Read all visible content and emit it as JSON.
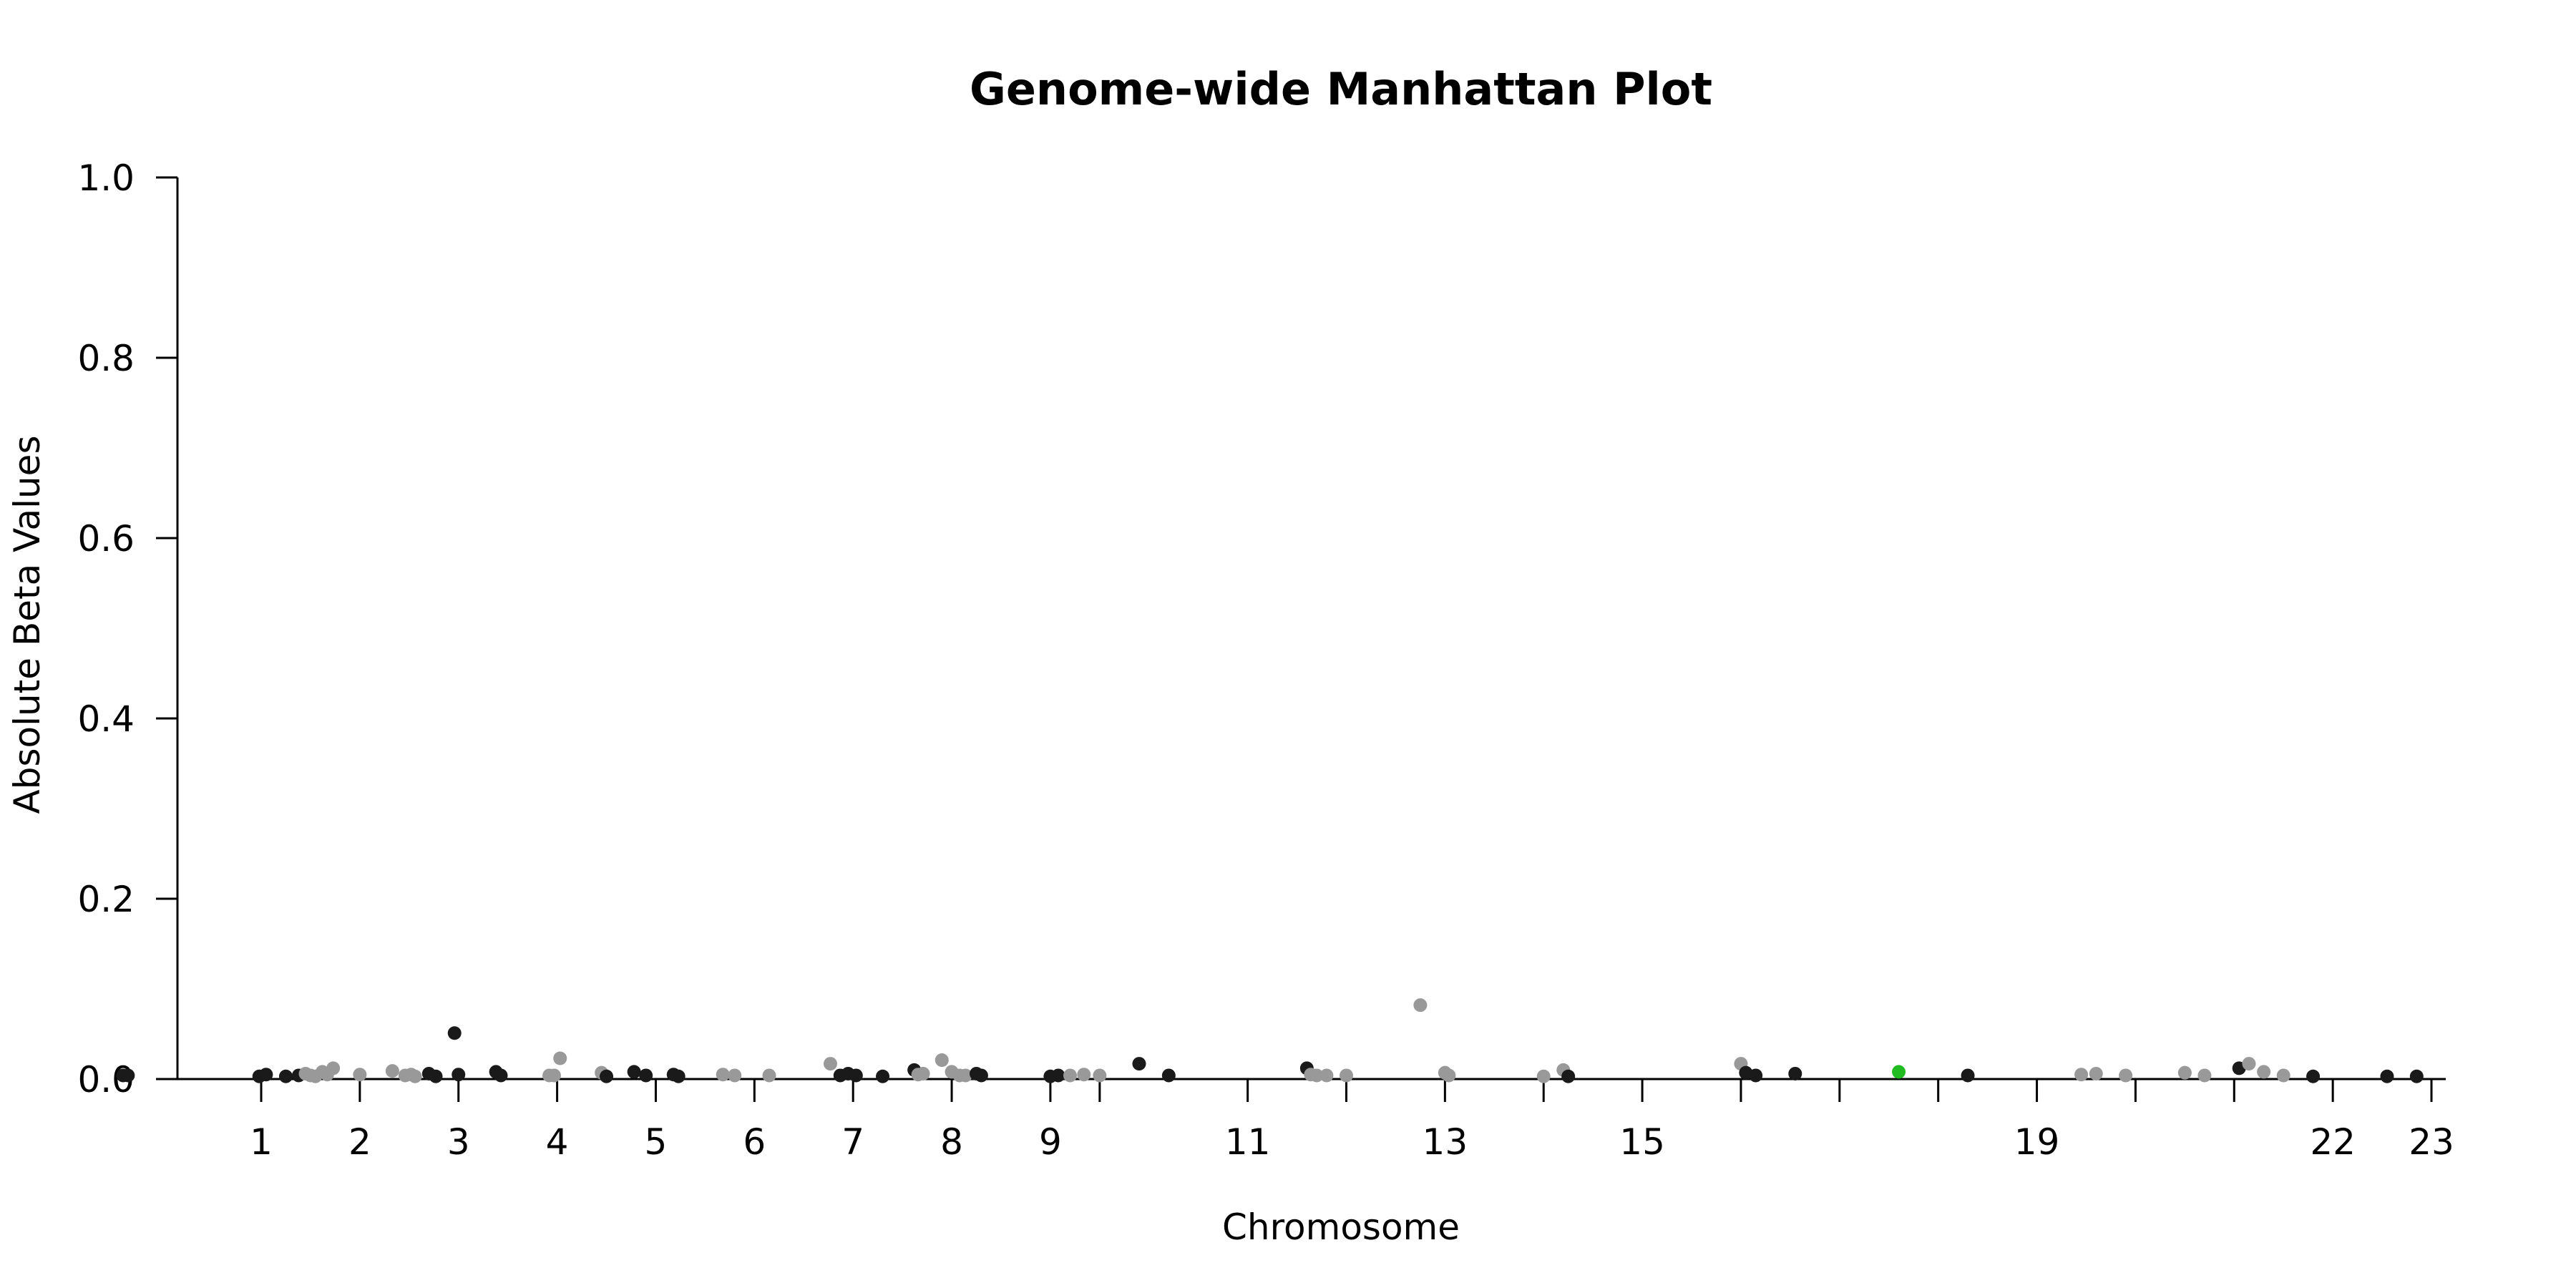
{
  "chart_data": {
    "type": "scatter",
    "title": "Genome-wide Manhattan Plot",
    "xlabel": "Chromosome",
    "ylabel": "Absolute Beta Values",
    "ylim": [
      0.0,
      1.0
    ],
    "y_ticks": [
      "0.0",
      "0.2",
      "0.4",
      "0.6",
      "0.8",
      "1.0"
    ],
    "y_tick_values": [
      0.0,
      0.2,
      0.4,
      0.6,
      0.8,
      1.0
    ],
    "x_ticks": [
      {
        "label": "1",
        "pos": 1.0
      },
      {
        "label": "2",
        "pos": 2.0
      },
      {
        "label": "3",
        "pos": 3.0
      },
      {
        "label": "4",
        "pos": 4.0
      },
      {
        "label": "5",
        "pos": 5.0
      },
      {
        "label": "6",
        "pos": 6.0
      },
      {
        "label": "7",
        "pos": 7.0
      },
      {
        "label": "8",
        "pos": 8.0
      },
      {
        "label": "9",
        "pos": 9.0
      },
      {
        "label": "",
        "pos": 9.5
      },
      {
        "label": "11",
        "pos": 11.0
      },
      {
        "label": "",
        "pos": 12.0
      },
      {
        "label": "13",
        "pos": 13.0
      },
      {
        "label": "",
        "pos": 14.0
      },
      {
        "label": "15",
        "pos": 15.0
      },
      {
        "label": "",
        "pos": 16.0
      },
      {
        "label": "",
        "pos": 17.0
      },
      {
        "label": "",
        "pos": 18.0
      },
      {
        "label": "19",
        "pos": 19.0
      },
      {
        "label": "",
        "pos": 20.0
      },
      {
        "label": "",
        "pos": 21.0
      },
      {
        "label": "22",
        "pos": 22.0
      },
      {
        "label": "23",
        "pos": 23.0
      }
    ],
    "xlim": [
      -0.5,
      23.1
    ],
    "grid": false,
    "colors": {
      "dark": "#1a1a1a",
      "light": "#999999",
      "highlight": "#22bb22"
    },
    "points": [
      {
        "x": -0.4,
        "y": 0.004,
        "c": "dark"
      },
      {
        "x": -0.35,
        "y": 0.004,
        "c": "dark"
      },
      {
        "x": 0.98,
        "y": 0.003,
        "c": "dark"
      },
      {
        "x": 1.05,
        "y": 0.005,
        "c": "dark"
      },
      {
        "x": 1.25,
        "y": 0.003,
        "c": "dark"
      },
      {
        "x": 1.38,
        "y": 0.004,
        "c": "dark"
      },
      {
        "x": 1.45,
        "y": 0.006,
        "c": "light"
      },
      {
        "x": 1.5,
        "y": 0.004,
        "c": "light"
      },
      {
        "x": 1.55,
        "y": 0.003,
        "c": "light"
      },
      {
        "x": 1.62,
        "y": 0.008,
        "c": "light"
      },
      {
        "x": 1.67,
        "y": 0.005,
        "c": "light"
      },
      {
        "x": 1.73,
        "y": 0.012,
        "c": "light"
      },
      {
        "x": 2.0,
        "y": 0.005,
        "c": "light"
      },
      {
        "x": 2.33,
        "y": 0.009,
        "c": "light"
      },
      {
        "x": 2.46,
        "y": 0.004,
        "c": "light"
      },
      {
        "x": 2.52,
        "y": 0.005,
        "c": "light"
      },
      {
        "x": 2.56,
        "y": 0.003,
        "c": "light"
      },
      {
        "x": 2.7,
        "y": 0.006,
        "c": "dark"
      },
      {
        "x": 2.77,
        "y": 0.003,
        "c": "dark"
      },
      {
        "x": 2.96,
        "y": 0.051,
        "c": "dark"
      },
      {
        "x": 3.0,
        "y": 0.005,
        "c": "dark"
      },
      {
        "x": 3.38,
        "y": 0.008,
        "c": "dark"
      },
      {
        "x": 3.43,
        "y": 0.004,
        "c": "dark"
      },
      {
        "x": 3.92,
        "y": 0.004,
        "c": "light"
      },
      {
        "x": 3.97,
        "y": 0.004,
        "c": "light"
      },
      {
        "x": 4.03,
        "y": 0.023,
        "c": "light"
      },
      {
        "x": 4.45,
        "y": 0.007,
        "c": "light"
      },
      {
        "x": 4.5,
        "y": 0.003,
        "c": "dark"
      },
      {
        "x": 4.78,
        "y": 0.008,
        "c": "dark"
      },
      {
        "x": 4.9,
        "y": 0.004,
        "c": "dark"
      },
      {
        "x": 5.18,
        "y": 0.005,
        "c": "dark"
      },
      {
        "x": 5.23,
        "y": 0.003,
        "c": "dark"
      },
      {
        "x": 5.68,
        "y": 0.005,
        "c": "light"
      },
      {
        "x": 5.8,
        "y": 0.004,
        "c": "light"
      },
      {
        "x": 6.15,
        "y": 0.004,
        "c": "light"
      },
      {
        "x": 6.77,
        "y": 0.017,
        "c": "light"
      },
      {
        "x": 6.87,
        "y": 0.004,
        "c": "dark"
      },
      {
        "x": 6.95,
        "y": 0.006,
        "c": "dark"
      },
      {
        "x": 7.03,
        "y": 0.004,
        "c": "dark"
      },
      {
        "x": 7.3,
        "y": 0.003,
        "c": "dark"
      },
      {
        "x": 7.62,
        "y": 0.01,
        "c": "dark"
      },
      {
        "x": 7.66,
        "y": 0.005,
        "c": "light"
      },
      {
        "x": 7.71,
        "y": 0.006,
        "c": "light"
      },
      {
        "x": 7.9,
        "y": 0.021,
        "c": "light"
      },
      {
        "x": 8.0,
        "y": 0.008,
        "c": "light"
      },
      {
        "x": 8.08,
        "y": 0.004,
        "c": "light"
      },
      {
        "x": 8.14,
        "y": 0.004,
        "c": "light"
      },
      {
        "x": 8.25,
        "y": 0.006,
        "c": "dark"
      },
      {
        "x": 8.3,
        "y": 0.004,
        "c": "dark"
      },
      {
        "x": 9.0,
        "y": 0.003,
        "c": "dark"
      },
      {
        "x": 9.08,
        "y": 0.004,
        "c": "dark"
      },
      {
        "x": 9.2,
        "y": 0.004,
        "c": "light"
      },
      {
        "x": 9.34,
        "y": 0.005,
        "c": "light"
      },
      {
        "x": 9.5,
        "y": 0.004,
        "c": "light"
      },
      {
        "x": 9.9,
        "y": 0.017,
        "c": "dark"
      },
      {
        "x": 10.2,
        "y": 0.004,
        "c": "dark"
      },
      {
        "x": 11.6,
        "y": 0.012,
        "c": "dark"
      },
      {
        "x": 11.64,
        "y": 0.005,
        "c": "light"
      },
      {
        "x": 11.7,
        "y": 0.004,
        "c": "light"
      },
      {
        "x": 11.8,
        "y": 0.004,
        "c": "light"
      },
      {
        "x": 12.0,
        "y": 0.004,
        "c": "light"
      },
      {
        "x": 12.75,
        "y": 0.082,
        "c": "light"
      },
      {
        "x": 13.0,
        "y": 0.007,
        "c": "light"
      },
      {
        "x": 13.04,
        "y": 0.004,
        "c": "light"
      },
      {
        "x": 14.0,
        "y": 0.003,
        "c": "light"
      },
      {
        "x": 14.2,
        "y": 0.01,
        "c": "light"
      },
      {
        "x": 14.25,
        "y": 0.003,
        "c": "dark"
      },
      {
        "x": 16.0,
        "y": 0.017,
        "c": "light"
      },
      {
        "x": 16.05,
        "y": 0.007,
        "c": "dark"
      },
      {
        "x": 16.15,
        "y": 0.004,
        "c": "dark"
      },
      {
        "x": 16.55,
        "y": 0.006,
        "c": "dark"
      },
      {
        "x": 17.6,
        "y": 0.008,
        "c": "highlight"
      },
      {
        "x": 18.3,
        "y": 0.004,
        "c": "dark"
      },
      {
        "x": 19.45,
        "y": 0.005,
        "c": "light"
      },
      {
        "x": 19.6,
        "y": 0.006,
        "c": "light"
      },
      {
        "x": 19.9,
        "y": 0.004,
        "c": "light"
      },
      {
        "x": 20.5,
        "y": 0.007,
        "c": "light"
      },
      {
        "x": 20.7,
        "y": 0.004,
        "c": "light"
      },
      {
        "x": 21.05,
        "y": 0.012,
        "c": "dark"
      },
      {
        "x": 21.15,
        "y": 0.017,
        "c": "light"
      },
      {
        "x": 21.3,
        "y": 0.008,
        "c": "light"
      },
      {
        "x": 21.5,
        "y": 0.004,
        "c": "light"
      },
      {
        "x": 21.8,
        "y": 0.003,
        "c": "dark"
      },
      {
        "x": 22.55,
        "y": 0.003,
        "c": "dark"
      },
      {
        "x": 22.85,
        "y": 0.003,
        "c": "dark"
      }
    ]
  }
}
